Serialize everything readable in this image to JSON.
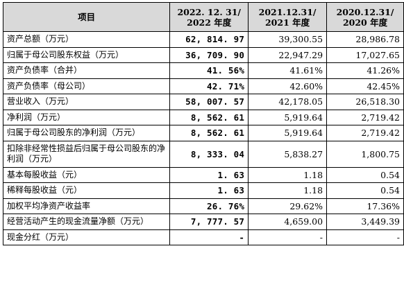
{
  "header": {
    "item": "项目",
    "col1_line1": "2022. 12. 31/",
    "col1_line2": "2022 年度",
    "col2_line1": "2021.12.31/",
    "col2_line2": "2021 年度",
    "col3_line1": "2020.12.31/",
    "col3_line2": "2020 年度"
  },
  "rows": [
    {
      "label": "资产总额（万元）",
      "v2022": "62, 814. 97",
      "v2021": "39,300.55",
      "v2020": "28,986.78"
    },
    {
      "label": "归属于母公司股东权益（万元）",
      "v2022": "36, 709. 90",
      "v2021": "22,947.29",
      "v2020": "17,027.65"
    },
    {
      "label": "资产负债率（合并）",
      "v2022": "41. 56%",
      "v2021": "41.61%",
      "v2020": "41.26%"
    },
    {
      "label": "资产负债率（母公司）",
      "v2022": "42. 71%",
      "v2021": "42.60%",
      "v2020": "42.45%"
    },
    {
      "label": "营业收入（万元）",
      "v2022": "58, 007. 57",
      "v2021": "42,178.05",
      "v2020": "26,518.30"
    },
    {
      "label": "净利润（万元）",
      "v2022": "8, 562. 61",
      "v2021": "5,919.64",
      "v2020": "2,719.42"
    },
    {
      "label": "归属于母公司股东的净利润（万元）",
      "v2022": "8, 562. 61",
      "v2021": "5,919.64",
      "v2020": "2,719.42"
    },
    {
      "label": "扣除非经常性损益后归属于母公司股东的净利润（万元）",
      "v2022": "8, 333. 04",
      "v2021": "5,838.27",
      "v2020": "1,800.75"
    },
    {
      "label": "基本每股收益（元）",
      "v2022": "1. 63",
      "v2021": "1.18",
      "v2020": "0.54"
    },
    {
      "label": "稀释每股收益（元）",
      "v2022": "1. 63",
      "v2021": "1.18",
      "v2020": "0.54"
    },
    {
      "label": "加权平均净资产收益率",
      "v2022": "26. 76%",
      "v2021": "29.62%",
      "v2020": "17.36%"
    },
    {
      "label": "经营活动产生的现金流量净额（万元）",
      "v2022": "7, 777. 57",
      "v2021": "4,659.00",
      "v2020": "3,449.39"
    },
    {
      "label": "现金分红（万元）",
      "v2022": "-",
      "v2021": "-",
      "v2020": "-"
    }
  ]
}
